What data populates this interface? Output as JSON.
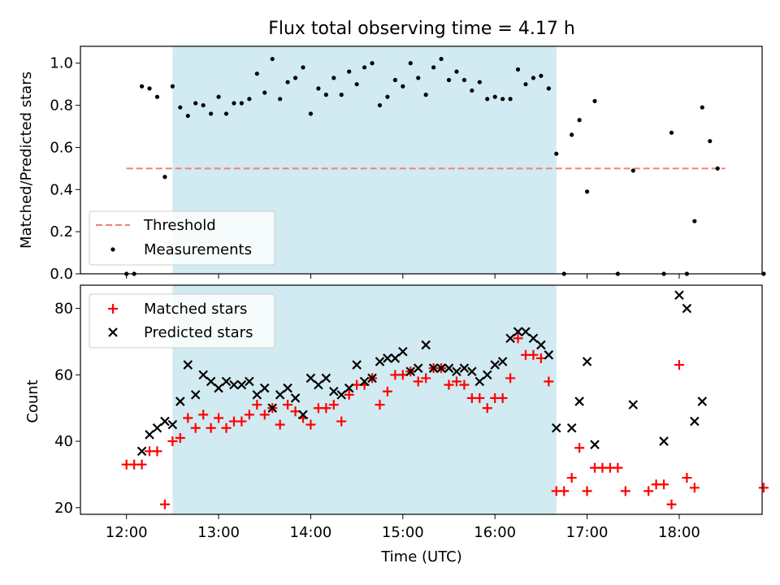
{
  "chart_data": {
    "title": "Flux total observing time = 4.17 h",
    "xlabel": "Time (UTC)",
    "xlim": [
      "11:30",
      "18:54"
    ],
    "xticks": [
      "12:00",
      "13:00",
      "14:00",
      "15:00",
      "16:00",
      "17:00",
      "18:00"
    ],
    "shaded_region": {
      "start": "12:30",
      "end": "16:40",
      "color": "#add8e6"
    },
    "panels": [
      {
        "type": "scatter",
        "ylabel": "Matched/Predicted stars",
        "ylim": [
          0,
          1.08
        ],
        "yticks": [
          "0.0",
          "0.2",
          "0.4",
          "0.6",
          "0.8",
          "1.0"
        ],
        "legend_position": "lower left",
        "threshold": {
          "name": "Threshold",
          "value": 0.5,
          "x_start": "12:00",
          "x_end": "18:30",
          "color": "#f08080"
        },
        "series": [
          {
            "name": "Measurements",
            "color": "#000000",
            "marker": "dot",
            "points": [
              [
                "12:00",
                0.0
              ],
              [
                "12:05",
                0.0
              ],
              [
                "12:10",
                0.89
              ],
              [
                "12:15",
                0.88
              ],
              [
                "12:20",
                0.84
              ],
              [
                "12:25",
                0.46
              ],
              [
                "12:30",
                0.89
              ],
              [
                "12:35",
                0.79
              ],
              [
                "12:40",
                0.75
              ],
              [
                "12:45",
                0.81
              ],
              [
                "12:50",
                0.8
              ],
              [
                "12:55",
                0.76
              ],
              [
                "13:00",
                0.84
              ],
              [
                "13:05",
                0.76
              ],
              [
                "13:10",
                0.81
              ],
              [
                "13:15",
                0.81
              ],
              [
                "13:20",
                0.83
              ],
              [
                "13:25",
                0.95
              ],
              [
                "13:30",
                0.86
              ],
              [
                "13:35",
                1.02
              ],
              [
                "13:40",
                0.83
              ],
              [
                "13:45",
                0.91
              ],
              [
                "13:50",
                0.93
              ],
              [
                "13:55",
                0.98
              ],
              [
                "14:00",
                0.76
              ],
              [
                "14:05",
                0.88
              ],
              [
                "14:10",
                0.85
              ],
              [
                "14:15",
                0.93
              ],
              [
                "14:20",
                0.85
              ],
              [
                "14:25",
                0.96
              ],
              [
                "14:30",
                0.9
              ],
              [
                "14:35",
                0.98
              ],
              [
                "14:40",
                1.0
              ],
              [
                "14:45",
                0.8
              ],
              [
                "14:50",
                0.84
              ],
              [
                "14:55",
                0.92
              ],
              [
                "15:00",
                0.89
              ],
              [
                "15:05",
                1.0
              ],
              [
                "15:10",
                0.93
              ],
              [
                "15:15",
                0.85
              ],
              [
                "15:20",
                0.98
              ],
              [
                "15:25",
                1.02
              ],
              [
                "15:30",
                0.92
              ],
              [
                "15:35",
                0.96
              ],
              [
                "15:40",
                0.92
              ],
              [
                "15:45",
                0.87
              ],
              [
                "15:50",
                0.91
              ],
              [
                "15:55",
                0.83
              ],
              [
                "16:00",
                0.84
              ],
              [
                "16:05",
                0.83
              ],
              [
                "16:10",
                0.83
              ],
              [
                "16:15",
                0.97
              ],
              [
                "16:20",
                0.9
              ],
              [
                "16:25",
                0.93
              ],
              [
                "16:30",
                0.94
              ],
              [
                "16:35",
                0.88
              ],
              [
                "16:40",
                0.57
              ],
              [
                "16:45",
                0.0
              ],
              [
                "16:50",
                0.66
              ],
              [
                "16:55",
                0.73
              ],
              [
                "17:00",
                0.39
              ],
              [
                "17:05",
                0.82
              ],
              [
                "17:20",
                0.0
              ],
              [
                "17:30",
                0.49
              ],
              [
                "17:50",
                0.0
              ],
              [
                "17:55",
                0.67
              ],
              [
                "18:05",
                0.0
              ],
              [
                "18:10",
                0.25
              ],
              [
                "18:15",
                0.79
              ],
              [
                "18:20",
                0.63
              ],
              [
                "18:25",
                0.5
              ],
              [
                "18:55",
                0.0
              ]
            ]
          }
        ]
      },
      {
        "type": "scatter",
        "ylabel": "Count",
        "ylim": [
          18,
          87
        ],
        "yticks": [
          "20",
          "40",
          "60",
          "80"
        ],
        "legend_position": "upper left",
        "series": [
          {
            "name": "Matched stars",
            "color": "#ff0000",
            "marker": "plus",
            "points": [
              [
                "12:00",
                33
              ],
              [
                "12:05",
                33
              ],
              [
                "12:10",
                33
              ],
              [
                "12:15",
                37
              ],
              [
                "12:20",
                37
              ],
              [
                "12:25",
                21
              ],
              [
                "12:30",
                40
              ],
              [
                "12:35",
                41
              ],
              [
                "12:40",
                47
              ],
              [
                "12:45",
                44
              ],
              [
                "12:50",
                48
              ],
              [
                "12:55",
                44
              ],
              [
                "13:00",
                47
              ],
              [
                "13:05",
                44
              ],
              [
                "13:10",
                46
              ],
              [
                "13:15",
                46
              ],
              [
                "13:20",
                48
              ],
              [
                "13:25",
                51
              ],
              [
                "13:30",
                48
              ],
              [
                "13:35",
                50
              ],
              [
                "13:40",
                45
              ],
              [
                "13:45",
                51
              ],
              [
                "13:50",
                49
              ],
              [
                "13:55",
                47
              ],
              [
                "14:00",
                45
              ],
              [
                "14:05",
                50
              ],
              [
                "14:10",
                50
              ],
              [
                "14:15",
                51
              ],
              [
                "14:20",
                46
              ],
              [
                "14:25",
                54
              ],
              [
                "14:30",
                57
              ],
              [
                "14:35",
                57
              ],
              [
                "14:40",
                59
              ],
              [
                "14:45",
                51
              ],
              [
                "14:50",
                55
              ],
              [
                "14:55",
                60
              ],
              [
                "15:00",
                60
              ],
              [
                "15:05",
                61
              ],
              [
                "15:10",
                58
              ],
              [
                "15:15",
                59
              ],
              [
                "15:20",
                62
              ],
              [
                "15:25",
                62
              ],
              [
                "15:30",
                57
              ],
              [
                "15:35",
                58
              ],
              [
                "15:40",
                57
              ],
              [
                "15:45",
                53
              ],
              [
                "15:50",
                53
              ],
              [
                "15:55",
                50
              ],
              [
                "16:00",
                53
              ],
              [
                "16:05",
                53
              ],
              [
                "16:10",
                59
              ],
              [
                "16:15",
                71
              ],
              [
                "16:20",
                66
              ],
              [
                "16:25",
                66
              ],
              [
                "16:30",
                65
              ],
              [
                "16:35",
                58
              ],
              [
                "16:40",
                25
              ],
              [
                "16:45",
                25
              ],
              [
                "16:50",
                29
              ],
              [
                "16:55",
                38
              ],
              [
                "17:00",
                25
              ],
              [
                "17:05",
                32
              ],
              [
                "17:10",
                32
              ],
              [
                "17:15",
                32
              ],
              [
                "17:20",
                32
              ],
              [
                "17:25",
                25
              ],
              [
                "17:40",
                25
              ],
              [
                "17:45",
                27
              ],
              [
                "17:50",
                27
              ],
              [
                "17:55",
                21
              ],
              [
                "18:00",
                63
              ],
              [
                "18:05",
                29
              ],
              [
                "18:10",
                26
              ],
              [
                "18:55",
                26
              ]
            ]
          },
          {
            "name": "Predicted stars",
            "color": "#000000",
            "marker": "x",
            "points": [
              [
                "12:10",
                37
              ],
              [
                "12:15",
                42
              ],
              [
                "12:20",
                44
              ],
              [
                "12:25",
                46
              ],
              [
                "12:30",
                45
              ],
              [
                "12:35",
                52
              ],
              [
                "12:40",
                63
              ],
              [
                "12:45",
                54
              ],
              [
                "12:50",
                60
              ],
              [
                "12:55",
                58
              ],
              [
                "13:00",
                56
              ],
              [
                "13:05",
                58
              ],
              [
                "13:10",
                57
              ],
              [
                "13:15",
                57
              ],
              [
                "13:20",
                58
              ],
              [
                "13:25",
                54
              ],
              [
                "13:30",
                56
              ],
              [
                "13:35",
                50
              ],
              [
                "13:40",
                54
              ],
              [
                "13:45",
                56
              ],
              [
                "13:50",
                53
              ],
              [
                "13:55",
                48
              ],
              [
                "14:00",
                59
              ],
              [
                "14:05",
                57
              ],
              [
                "14:10",
                59
              ],
              [
                "14:15",
                55
              ],
              [
                "14:20",
                54
              ],
              [
                "14:25",
                56
              ],
              [
                "14:30",
                63
              ],
              [
                "14:35",
                58
              ],
              [
                "14:40",
                59
              ],
              [
                "14:45",
                64
              ],
              [
                "14:50",
                65
              ],
              [
                "14:55",
                65
              ],
              [
                "15:00",
                67
              ],
              [
                "15:05",
                61
              ],
              [
                "15:10",
                62
              ],
              [
                "15:15",
                69
              ],
              [
                "15:20",
                62
              ],
              [
                "15:25",
                62
              ],
              [
                "15:30",
                62
              ],
              [
                "15:35",
                61
              ],
              [
                "15:40",
                62
              ],
              [
                "15:45",
                61
              ],
              [
                "15:50",
                58
              ],
              [
                "15:55",
                60
              ],
              [
                "16:00",
                63
              ],
              [
                "16:05",
                64
              ],
              [
                "16:10",
                71
              ],
              [
                "16:15",
                73
              ],
              [
                "16:20",
                73
              ],
              [
                "16:25",
                71
              ],
              [
                "16:30",
                69
              ],
              [
                "16:35",
                66
              ],
              [
                "16:40",
                44
              ],
              [
                "16:50",
                44
              ],
              [
                "16:55",
                52
              ],
              [
                "17:00",
                64
              ],
              [
                "17:05",
                39
              ],
              [
                "17:30",
                51
              ],
              [
                "17:50",
                40
              ],
              [
                "18:00",
                84
              ],
              [
                "18:05",
                80
              ],
              [
                "18:10",
                46
              ],
              [
                "18:15",
                52
              ]
            ]
          }
        ]
      }
    ]
  }
}
